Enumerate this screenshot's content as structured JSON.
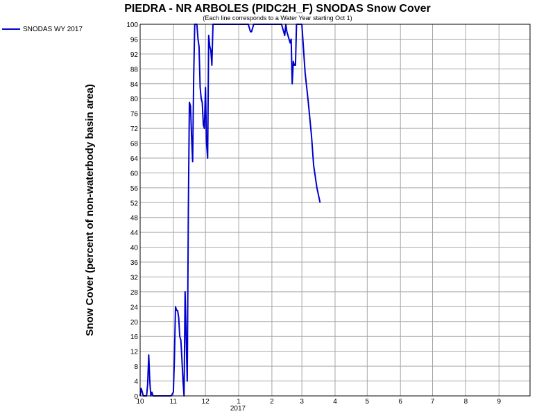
{
  "chart_data": {
    "type": "line",
    "title": "PIEDRA - NR ARBOLES (PIDC2H_F) SNODAS Snow Cover",
    "subtitle": "(Each line corresponds to a Water Year starting Oct 1)",
    "ylabel": "Snow Cover (percent of non-waterbody basin area)",
    "xlabel": "",
    "ylim": [
      0,
      100
    ],
    "yticks": [
      0,
      4,
      8,
      12,
      16,
      20,
      24,
      28,
      32,
      36,
      40,
      44,
      48,
      52,
      56,
      60,
      64,
      68,
      72,
      76,
      80,
      84,
      88,
      92,
      96,
      100
    ],
    "xlim": [
      "2016-10-01",
      "2017-09-30"
    ],
    "x_ticks": [
      {
        "date": "2016-10-01",
        "label": "10"
      },
      {
        "date": "2016-11-01",
        "label": "11"
      },
      {
        "date": "2016-12-01",
        "label": "12"
      },
      {
        "date": "2017-01-01",
        "label": "1"
      },
      {
        "date": "2017-02-01",
        "label": "2"
      },
      {
        "date": "2017-03-01",
        "label": "3"
      },
      {
        "date": "2017-04-01",
        "label": "4"
      },
      {
        "date": "2017-05-01",
        "label": "5"
      },
      {
        "date": "2017-06-01",
        "label": "6"
      },
      {
        "date": "2017-07-01",
        "label": "7"
      },
      {
        "date": "2017-08-01",
        "label": "8"
      },
      {
        "date": "2017-09-01",
        "label": "9"
      }
    ],
    "year_label": "2017",
    "grid": true,
    "legend_position": "top-left outside",
    "series": [
      {
        "name": "SNODAS WY 2017",
        "color": "#0000cc",
        "points": [
          [
            "2016-10-01",
            0
          ],
          [
            "2016-10-02",
            2
          ],
          [
            "2016-10-03",
            1
          ],
          [
            "2016-10-04",
            0
          ],
          [
            "2016-10-07",
            0
          ],
          [
            "2016-10-08",
            3
          ],
          [
            "2016-10-09",
            11
          ],
          [
            "2016-10-10",
            4
          ],
          [
            "2016-10-11",
            0
          ],
          [
            "2016-10-12",
            1
          ],
          [
            "2016-10-13",
            0
          ],
          [
            "2016-10-30",
            0
          ],
          [
            "2016-11-01",
            1
          ],
          [
            "2016-11-02",
            10
          ],
          [
            "2016-11-03",
            24
          ],
          [
            "2016-11-04",
            23
          ],
          [
            "2016-11-05",
            23
          ],
          [
            "2016-11-06",
            21
          ],
          [
            "2016-11-07",
            16
          ],
          [
            "2016-11-08",
            15
          ],
          [
            "2016-11-09",
            10
          ],
          [
            "2016-11-10",
            4
          ],
          [
            "2016-11-11",
            0
          ],
          [
            "2016-11-12",
            28
          ],
          [
            "2016-11-13",
            15
          ],
          [
            "2016-11-14",
            4
          ],
          [
            "2016-11-15",
            50
          ],
          [
            "2016-11-16",
            79
          ],
          [
            "2016-11-17",
            78
          ],
          [
            "2016-11-18",
            70
          ],
          [
            "2016-11-19",
            63
          ],
          [
            "2016-11-20",
            86
          ],
          [
            "2016-11-21",
            100
          ],
          [
            "2016-11-23",
            100
          ],
          [
            "2016-11-24",
            96
          ],
          [
            "2016-11-25",
            94
          ],
          [
            "2016-11-26",
            83
          ],
          [
            "2016-11-27",
            80
          ],
          [
            "2016-11-28",
            79
          ],
          [
            "2016-11-29",
            73
          ],
          [
            "2016-11-30",
            72
          ],
          [
            "2016-12-01",
            83
          ],
          [
            "2016-12-02",
            68
          ],
          [
            "2016-12-03",
            64
          ],
          [
            "2016-12-04",
            97
          ],
          [
            "2016-12-05",
            94
          ],
          [
            "2016-12-06",
            93
          ],
          [
            "2016-12-07",
            89
          ],
          [
            "2016-12-08",
            100
          ],
          [
            "2016-12-28",
            100
          ],
          [
            "2017-01-10",
            100
          ],
          [
            "2017-01-12",
            98
          ],
          [
            "2017-01-13",
            98
          ],
          [
            "2017-01-15",
            100
          ],
          [
            "2017-02-10",
            100
          ],
          [
            "2017-02-12",
            98
          ],
          [
            "2017-02-13",
            97
          ],
          [
            "2017-02-14",
            100
          ],
          [
            "2017-02-15",
            98
          ],
          [
            "2017-02-17",
            96
          ],
          [
            "2017-02-18",
            95
          ],
          [
            "2017-02-19",
            96
          ],
          [
            "2017-02-20",
            84
          ],
          [
            "2017-02-21",
            90
          ],
          [
            "2017-02-22",
            89
          ],
          [
            "2017-02-23",
            89
          ],
          [
            "2017-02-24",
            100
          ],
          [
            "2017-03-01",
            100
          ],
          [
            "2017-03-04",
            87
          ],
          [
            "2017-03-07",
            79
          ],
          [
            "2017-03-10",
            70
          ],
          [
            "2017-03-12",
            62
          ],
          [
            "2017-03-15",
            56
          ],
          [
            "2017-03-18",
            52
          ]
        ]
      }
    ]
  }
}
